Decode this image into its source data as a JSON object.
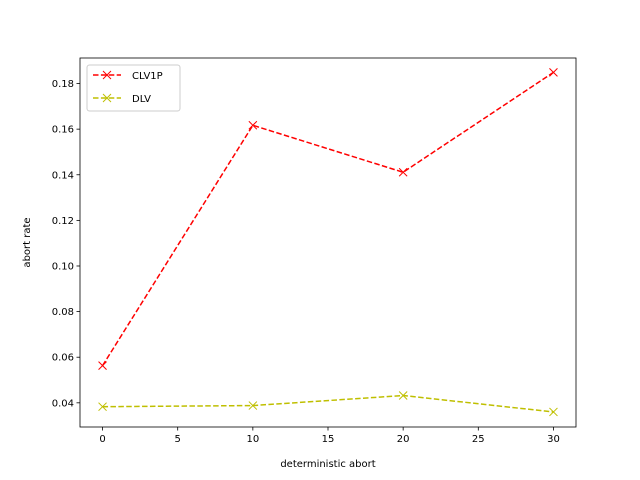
{
  "chart_data": {
    "type": "line",
    "title": "",
    "xlabel": "deterministic abort",
    "ylabel": "abort rate",
    "xlim": [
      -1.5,
      31.5
    ],
    "ylim": [
      0.0294,
      0.1912
    ],
    "xticks": [
      0,
      5,
      10,
      15,
      20,
      25,
      30
    ],
    "xtick_labels": [
      "0",
      "5",
      "10",
      "15",
      "20",
      "25",
      "30"
    ],
    "yticks": [
      0.04,
      0.06,
      0.08,
      0.1,
      0.12,
      0.14,
      0.16,
      0.18
    ],
    "ytick_labels": [
      "0.04",
      "0.06",
      "0.08",
      "0.10",
      "0.12",
      "0.14",
      "0.16",
      "0.18"
    ],
    "grid": false,
    "legend_position": "upper-left",
    "x": [
      0,
      10,
      20,
      30
    ],
    "series": [
      {
        "name": "CLV1P",
        "color": "#ff0000",
        "line_style": "dashed",
        "marker": "x",
        "values": [
          0.0563,
          0.1617,
          0.1411,
          0.1849
        ]
      },
      {
        "name": "DLV",
        "color": "#bfbf00",
        "line_style": "dashed",
        "marker": "x",
        "values": [
          0.0383,
          0.0388,
          0.0432,
          0.036
        ]
      }
    ]
  }
}
